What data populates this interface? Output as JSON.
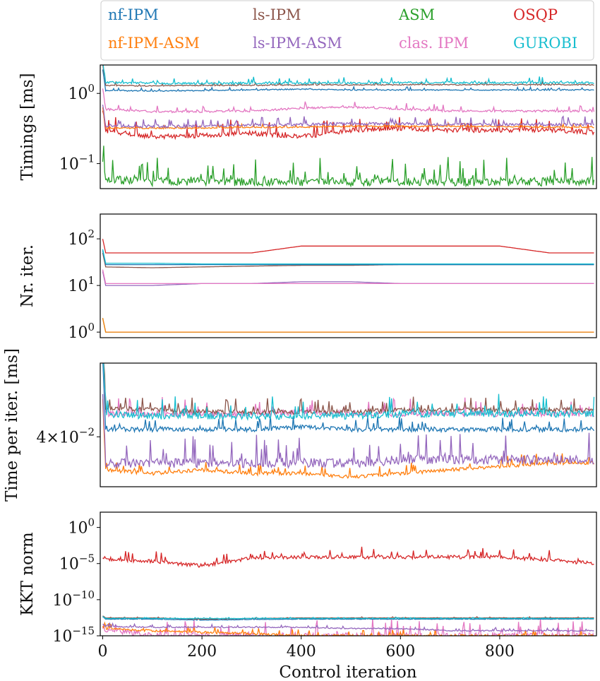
{
  "chart_data": {
    "type": "line",
    "xlabel": "Control iteration",
    "xlim": [
      -5,
      995
    ],
    "xticks": [
      "0",
      "200",
      "400",
      "600",
      "800"
    ],
    "x_sample": [
      0,
      100,
      200,
      300,
      400,
      500,
      600,
      700,
      800,
      900,
      990
    ],
    "legend": {
      "placement": "top",
      "entries": [
        {
          "name": "nf-IPM",
          "color": "#1f77b4"
        },
        {
          "name": "ls-IPM",
          "color": "#8c564b"
        },
        {
          "name": "ASM",
          "color": "#2ca02c"
        },
        {
          "name": "OSQP",
          "color": "#d62728"
        },
        {
          "name": "nf-IPM-ASM",
          "color": "#ff7f0e"
        },
        {
          "name": "ls-IPM-ASM",
          "color": "#9467bd"
        },
        {
          "name": "clas. IPM",
          "color": "#e377c2"
        },
        {
          "name": "GUROBI",
          "color": "#17becf"
        }
      ]
    },
    "panels": [
      {
        "ylabel": "Timings [ms]",
        "yscale": "log",
        "ylim": [
          0.044,
          2.54
        ],
        "yticks": [
          {
            "value": 1,
            "base": "10",
            "exp": "0"
          },
          {
            "value": 0.1,
            "base": "10",
            "exp": "−1"
          }
        ],
        "series": [
          {
            "name": "ASM",
            "jitter": 0.12,
            "values": [
              0.06,
              0.055,
              0.055,
              0.055,
              0.055,
              0.055,
              0.055,
              0.055,
              0.055,
              0.055,
              0.055
            ]
          },
          {
            "name": "OSQP",
            "jitter": 0.07,
            "values": [
              0.3,
              0.24,
              0.25,
              0.27,
              0.24,
              0.3,
              0.32,
              0.3,
              0.3,
              0.3,
              0.28
            ]
          },
          {
            "name": "nf-IPM-ASM",
            "jitter": 0.02,
            "values": [
              0.32,
              0.32,
              0.32,
              0.33,
              0.33,
              0.34,
              0.34,
              0.34,
              0.34,
              0.33,
              0.33
            ]
          },
          {
            "name": "ls-IPM-ASM",
            "jitter": 0.04,
            "values": [
              0.35,
              0.34,
              0.34,
              0.35,
              0.36,
              0.37,
              0.37,
              0.36,
              0.36,
              0.36,
              0.36
            ]
          },
          {
            "name": "clas. IPM",
            "jitter": 0.03,
            "values": [
              0.6,
              0.55,
              0.55,
              0.56,
              0.62,
              0.64,
              0.6,
              0.56,
              0.56,
              0.56,
              0.56
            ]
          },
          {
            "name": "nf-IPM",
            "jitter": 0.015,
            "values": [
              1.1,
              1.08,
              1.1,
              1.12,
              1.15,
              1.12,
              1.12,
              1.12,
              1.12,
              1.12,
              1.12
            ]
          },
          {
            "name": "ls-IPM",
            "jitter": 0.015,
            "values": [
              1.3,
              1.28,
              1.3,
              1.3,
              1.32,
              1.32,
              1.33,
              1.33,
              1.33,
              1.33,
              1.33
            ]
          },
          {
            "name": "GUROBI",
            "jitter": 0.03,
            "values": [
              1.45,
              1.4,
              1.38,
              1.4,
              1.4,
              1.4,
              1.42,
              1.42,
              1.42,
              1.42,
              1.42
            ]
          }
        ]
      },
      {
        "ylabel": "Nr. iter.",
        "yscale": "log",
        "ylim": [
          0.76,
          340
        ],
        "yticks": [
          {
            "value": 100,
            "base": "10",
            "exp": "2"
          },
          {
            "value": 10,
            "base": "10",
            "exp": "1"
          },
          {
            "value": 1,
            "base": "10",
            "exp": "0"
          }
        ],
        "series": [
          {
            "name": "ASM",
            "jitter": 0.0,
            "values": [
              1,
              1,
              1,
              1,
              1,
              1,
              1,
              1,
              1,
              1,
              1
            ]
          },
          {
            "name": "nf-IPM-ASM",
            "jitter": 0.0,
            "values": [
              1,
              1,
              1,
              1,
              1,
              1,
              1,
              1,
              1,
              1,
              1
            ]
          },
          {
            "name": "OSQP",
            "jitter": 0.0,
            "values": [
              50,
              50,
              50,
              50,
              70,
              70,
              70,
              70,
              70,
              50,
              50
            ]
          },
          {
            "name": "ls-IPM-ASM",
            "jitter": 0.0,
            "values": [
              10,
              10,
              11,
              11,
              12,
              12,
              11,
              11,
              11,
              11,
              11
            ]
          },
          {
            "name": "clas. IPM",
            "jitter": 0.0,
            "values": [
              11,
              11,
              11,
              11,
              11,
              11,
              11,
              11,
              11,
              11,
              11
            ]
          },
          {
            "name": "ls-IPM",
            "jitter": 0.0,
            "values": [
              25,
              24,
              25,
              26,
              27,
              27,
              28,
              28,
              28,
              28,
              28
            ]
          },
          {
            "name": "nf-IPM",
            "jitter": 0.0,
            "values": [
              28,
              28,
              28,
              28,
              28,
              28,
              28,
              28,
              28,
              28,
              28
            ]
          },
          {
            "name": "GUROBI",
            "jitter": 0.0,
            "values": [
              30,
              30,
              29,
              29,
              29,
              29,
              29,
              29,
              29,
              29,
              29
            ]
          }
        ]
      },
      {
        "ylabel": "Time per iter. [ms]",
        "yscale": "log",
        "ylim": [
          0.0246,
          0.082
        ],
        "yticks": [
          {
            "value": 0.04,
            "base": "4×10",
            "exp": "−2"
          }
        ],
        "series": [
          {
            "name": "nf-IPM-ASM",
            "jitter": 0.015,
            "values": [
              0.029,
              0.028,
              0.029,
              0.028,
              0.028,
              0.027,
              0.028,
              0.029,
              0.03,
              0.031,
              0.031
            ]
          },
          {
            "name": "ls-IPM-ASM",
            "jitter": 0.04,
            "values": [
              0.031,
              0.031,
              0.031,
              0.031,
              0.031,
              0.031,
              0.032,
              0.032,
              0.032,
              0.032,
              0.032
            ]
          },
          {
            "name": "nf-IPM",
            "jitter": 0.02,
            "values": [
              0.043,
              0.043,
              0.043,
              0.043,
              0.044,
              0.043,
              0.043,
              0.043,
              0.043,
              0.043,
              0.043
            ]
          },
          {
            "name": "clas. IPM",
            "jitter": 0.025,
            "values": [
              0.05,
              0.05,
              0.05,
              0.05,
              0.051,
              0.05,
              0.05,
              0.05,
              0.05,
              0.05,
              0.05
            ]
          },
          {
            "name": "ls-IPM",
            "jitter": 0.02,
            "values": [
              0.053,
              0.052,
              0.051,
              0.051,
              0.051,
              0.051,
              0.052,
              0.052,
              0.052,
              0.052,
              0.052
            ]
          },
          {
            "name": "GUROBI",
            "jitter": 0.03,
            "values": [
              0.05,
              0.049,
              0.049,
              0.049,
              0.049,
              0.049,
              0.05,
              0.05,
              0.05,
              0.05,
              0.05
            ]
          }
        ]
      },
      {
        "ylabel": "KKT norm",
        "yscale": "log",
        "ylim": [
          1e-15,
          130.0
        ],
        "yticks": [
          {
            "value": 1,
            "base": "10",
            "exp": "0"
          },
          {
            "value": 1e-05,
            "base": "10",
            "exp": "−5"
          },
          {
            "value": 1e-10,
            "base": "10",
            "exp": "−10"
          },
          {
            "value": 1e-15,
            "base": "10",
            "exp": "−15"
          }
        ],
        "series": [
          {
            "name": "clas. IPM",
            "jitter": 0.8,
            "values": [
              1e-14,
              1e-15,
              1e-15,
              1e-15,
              1e-15,
              1e-15,
              1e-15,
              1e-15,
              1e-15,
              1e-15,
              1e-15
            ]
          },
          {
            "name": "nf-IPM-ASM",
            "jitter": 0.3,
            "values": [
              1e-14,
              5e-15,
              3e-15,
              2e-15,
              1e-15,
              1e-15,
              1e-15,
              1e-15,
              1e-15,
              1e-15,
              1e-15
            ]
          },
          {
            "name": "ls-IPM-ASM",
            "jitter": 0.15,
            "values": [
              2e-14,
              1.5e-14,
              1.5e-14,
              1.5e-14,
              1.5e-14,
              1e-14,
              1e-14,
              5e-15,
              5e-15,
              5e-15,
              5e-15
            ]
          },
          {
            "name": "nf-IPM",
            "jitter": 0.05,
            "values": [
              2e-13,
              2e-13,
              1.5e-13,
              1.8e-13,
              2e-13,
              2e-13,
              2e-13,
              2e-13,
              2e-13,
              2e-13,
              2.2e-13
            ]
          },
          {
            "name": "ls-IPM",
            "jitter": 0.05,
            "values": [
              3e-13,
              3e-13,
              2e-13,
              2.5e-13,
              3e-13,
              3e-13,
              3e-13,
              3e-13,
              3e-13,
              3e-13,
              3e-13
            ]
          },
          {
            "name": "GUROBI",
            "jitter": 0.05,
            "values": [
              2.5e-13,
              2.5e-13,
              2.5e-13,
              2.5e-13,
              2.5e-13,
              2.5e-13,
              2.5e-13,
              2.5e-13,
              2.5e-13,
              2.5e-13,
              2.5e-13
            ]
          },
          {
            "name": "OSQP",
            "jitter": 0.5,
            "values": [
              5e-05,
              2e-05,
              5e-06,
              6e-05,
              8e-05,
              8e-05,
              8e-05,
              8e-05,
              8e-05,
              3e-05,
              1e-05
            ]
          }
        ]
      }
    ]
  }
}
